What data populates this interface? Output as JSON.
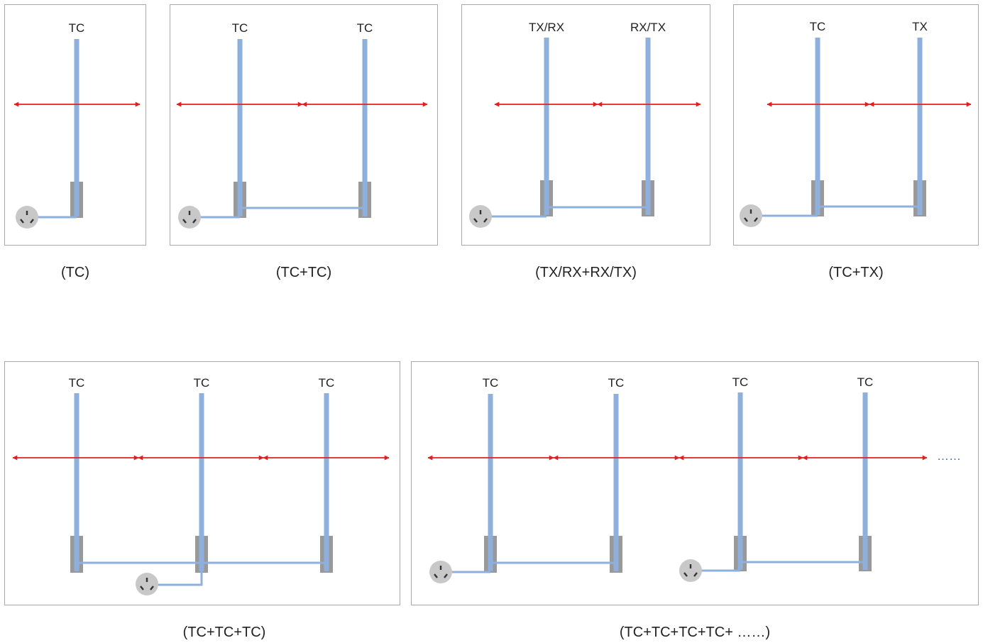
{
  "colors": {
    "antenna": "#8fb0dd",
    "cable": "#8fb0dd",
    "base": "#999999",
    "arrow": "#e02020",
    "outlet_fill": "#c8c8c8",
    "outlet_dots": "#333333",
    "ellipsis": "#2e6fb8",
    "border": "#a8a8a8",
    "text": "#222222"
  },
  "icons": {
    "outlet": "power-outlet-icon",
    "arrow": "double-headed-arrow-icon",
    "antenna": "antenna-pole-icon"
  },
  "panels": [
    {
      "id": "tc",
      "caption": "(TC)",
      "antennas": [
        "TC"
      ],
      "outlets": 1
    },
    {
      "id": "tc-tc",
      "caption": "(TC+TC)",
      "antennas": [
        "TC",
        "TC"
      ],
      "outlets": 1
    },
    {
      "id": "txrx-rxtx",
      "caption": "(TX/RX+RX/TX)",
      "antennas": [
        "TX/RX",
        "RX/TX"
      ],
      "outlets": 1
    },
    {
      "id": "tc-tx",
      "caption": "(TC+TX)",
      "antennas": [
        "TC",
        "TX"
      ],
      "outlets": 1
    },
    {
      "id": "tc-tc-tc",
      "caption": "(TC+TC+TC)",
      "antennas": [
        "TC",
        "TC",
        "TC"
      ],
      "outlets": 1
    },
    {
      "id": "tc-chain",
      "caption": "(TC+TC+TC+TC+ ……)",
      "antennas": [
        "TC",
        "TC",
        "TC",
        "TC"
      ],
      "outlets": 2,
      "continuation": "……"
    }
  ]
}
